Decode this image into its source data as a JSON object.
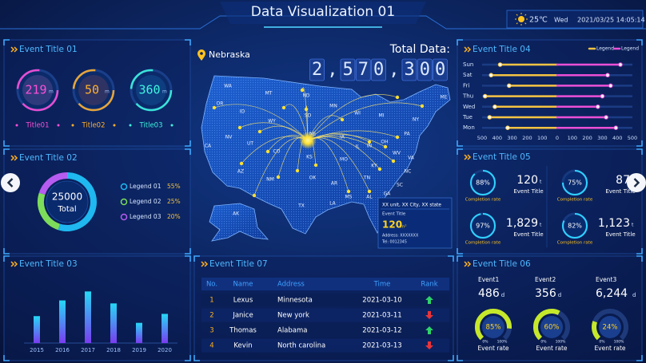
{
  "header": {
    "title": "Data Visualization 01",
    "temperature": "25℃",
    "weekday": "Wed",
    "datetime": "2021/03/25 14:05:14"
  },
  "panel01": {
    "title": "Event Title 01",
    "gauges": [
      {
        "value": "219",
        "unit": "m",
        "label": "Title01"
      },
      {
        "value": "50",
        "unit": "m",
        "label": "Title02"
      },
      {
        "value": "360",
        "unit": "m",
        "label": "Title03"
      }
    ]
  },
  "chart_data": [
    {
      "type": "pie",
      "title": "Event Title 02",
      "center_value": "25000",
      "center_label": "Total",
      "categories": [
        "Legend 01",
        "Legend 02",
        "Legend 03"
      ],
      "values": [
        55,
        25,
        20
      ],
      "value_labels": [
        "55%",
        "25%",
        "20%"
      ],
      "colors": [
        "#1fb8f0",
        "#7ddc5a",
        "#b65cf0"
      ]
    },
    {
      "type": "bar",
      "title": "Event Title 03",
      "categories": [
        "2015",
        "2016",
        "2017",
        "2018",
        "2019",
        "2020"
      ],
      "values": [
        180,
        285,
        345,
        265,
        135,
        195
      ],
      "ylim": [
        0,
        400
      ],
      "colors": [
        "#25d8f5",
        "#7a3cf0"
      ]
    },
    {
      "type": "hbar",
      "title": "Event Title 04",
      "categories": [
        "Sun",
        "Sat",
        "Fri",
        "Thu",
        "Wed",
        "Tue",
        "Mon"
      ],
      "series": [
        {
          "name": "Legend",
          "color": "#f5c342",
          "values": [
            -380,
            -440,
            -320,
            -480,
            -415,
            -450,
            -330
          ]
        },
        {
          "name": "Legend",
          "color": "#ec4fd6",
          "values": [
            420,
            335,
            355,
            300,
            270,
            325,
            390
          ]
        }
      ],
      "xlim": [
        -500,
        500
      ],
      "xticks": [
        {
          "value": -500,
          "label": "500"
        },
        {
          "value": -400,
          "label": "400"
        },
        {
          "value": -300,
          "label": "300"
        },
        {
          "value": -200,
          "label": "200"
        },
        {
          "value": -100,
          "label": "100"
        },
        0,
        100,
        200,
        300,
        400,
        500
      ],
      "legend_position": "top-right"
    }
  ],
  "map": {
    "location": "Nebraska",
    "total_label": "Total Data:",
    "total": "2,570,300",
    "states": [
      "WA",
      "MT",
      "ND",
      "MN",
      "OR",
      "ID",
      "WY",
      "SD",
      "WI",
      "MI",
      "NY",
      "ME",
      "NV",
      "UT",
      "CO",
      "NE",
      "IA",
      "IL",
      "IN",
      "OH",
      "PA",
      "CA",
      "KS",
      "MO",
      "KY",
      "WV",
      "VA",
      "AZ",
      "NM",
      "OK",
      "TN",
      "NC",
      "AR",
      "SC",
      "TX",
      "MS",
      "AL",
      "GA",
      "LA",
      "AK"
    ],
    "tooltip": {
      "heading": "XX unit, XX City, XX state",
      "title": "Event Title",
      "value": "120",
      "unit": "m²",
      "address": "Address: XXXXXXX",
      "tel": "Tel: 0012345"
    }
  },
  "panel05": {
    "title": "Event Title 05",
    "items": [
      {
        "percent": 88,
        "percent_label": "88%",
        "caption": "Completion rate",
        "value": "120",
        "unit": "t",
        "label": "Event Title"
      },
      {
        "percent": 75,
        "percent_label": "75%",
        "caption": "Completion rate",
        "value": "87",
        "unit": "t",
        "label": "Event Title"
      },
      {
        "percent": 97,
        "percent_label": "97%",
        "caption": "Completion rate",
        "value": "1,829",
        "unit": "t",
        "label": "Event Title"
      },
      {
        "percent": 82,
        "percent_label": "82%",
        "caption": "Completion rate",
        "value": "1,123",
        "unit": "t",
        "label": "Event Title"
      }
    ]
  },
  "panel06": {
    "title": "Event Title 06",
    "items": [
      {
        "name": "Event1",
        "value": "486",
        "unit": "d",
        "percent": 85,
        "percent_label": "85%",
        "min": "0%",
        "max": "100%",
        "label": "Event rate"
      },
      {
        "name": "Event2",
        "value": "356",
        "unit": "d",
        "percent": 60,
        "percent_label": "60%",
        "min": "0%",
        "max": "100%",
        "label": "Event rate"
      },
      {
        "name": "Event3",
        "value": "6,244",
        "unit": "d",
        "percent": 24,
        "percent_label": "24%",
        "min": "0%",
        "max": "100%",
        "label": "Event rate"
      }
    ]
  },
  "table": {
    "title": "Event Title 07",
    "columns": [
      "No.",
      "Name",
      "Address",
      "Time",
      "Rank"
    ],
    "rows": [
      [
        "1",
        "Lexus",
        "Minnesota",
        "2021-03-10"
      ],
      [
        "2",
        "Janice",
        "New york",
        "2021-03-11"
      ],
      [
        "3",
        "Thomas",
        "Alabama",
        "2021-03-12"
      ],
      [
        "4",
        "Kevin",
        "North carolina",
        "2021-03-13"
      ]
    ],
    "rank": [
      "up",
      "down",
      "up",
      "down"
    ]
  }
}
